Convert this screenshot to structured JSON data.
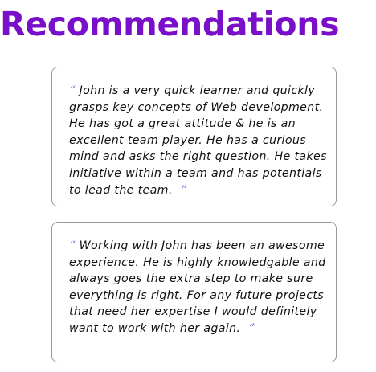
{
  "page": {
    "title": "Recommendations"
  },
  "quote_marks": {
    "open": "“",
    "close": "”"
  },
  "recommendations": [
    {
      "text": "John is a very quick learner and quickly grasps key concepts of Web development. He has got a great attitude & he is an excellent team player. He has a curious mind and asks the right question. He takes initiative within a team and has potentials to lead the team."
    },
    {
      "text": "Working with John has been an awesome experience. He is highly knowledgable and always goes the extra step to make sure everything is right. For any future projects that need her expertise I would definitely want to work with her again."
    }
  ],
  "colors": {
    "title": "#7a0fc9",
    "quote_marks": "#6f6fd8",
    "card_border": "#9a9a9a"
  }
}
